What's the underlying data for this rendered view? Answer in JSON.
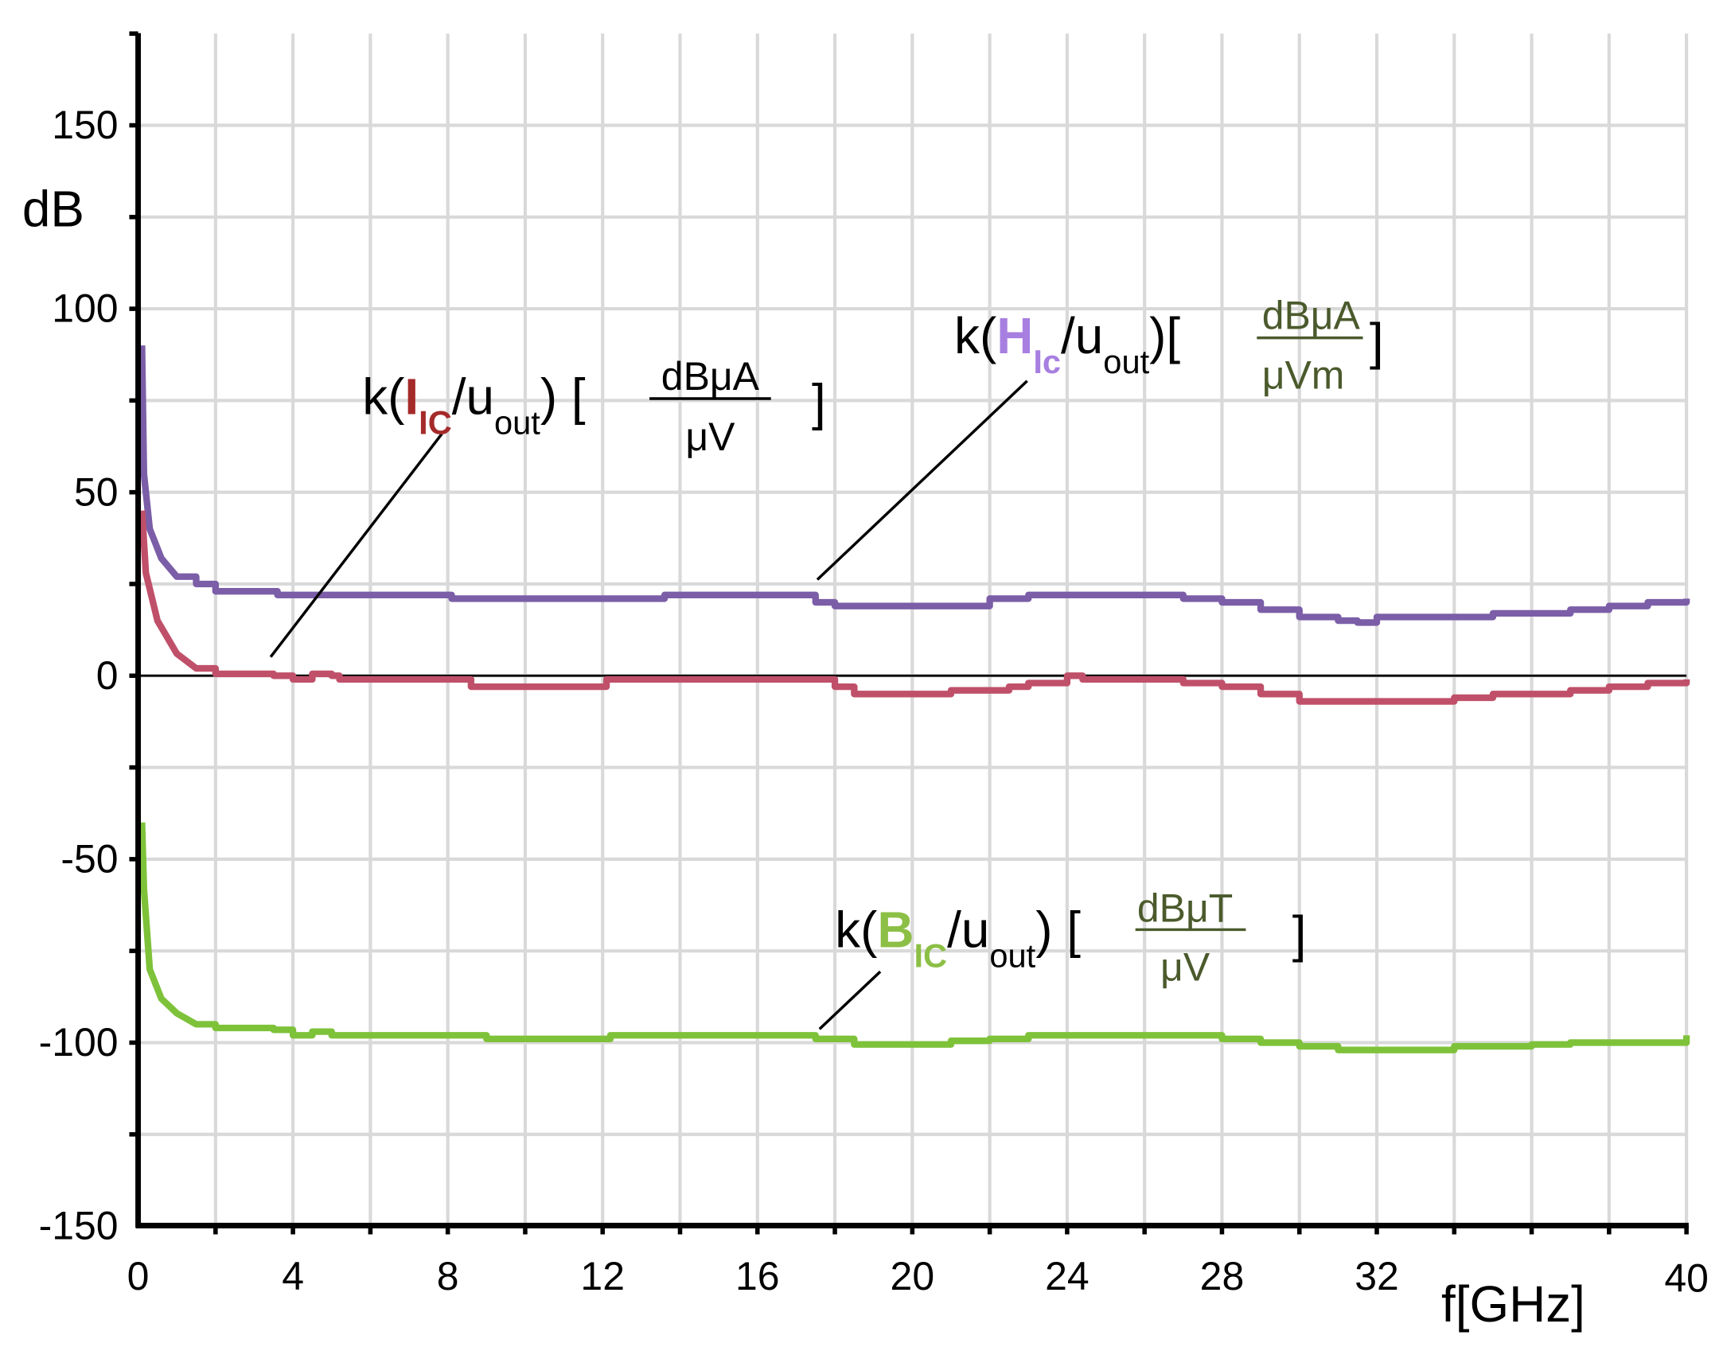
{
  "chart_data": {
    "type": "line",
    "title": "",
    "xlabel": "f[GHz]",
    "ylabel": "dB",
    "xlim": [
      0,
      40
    ],
    "ylim": [
      -150,
      175
    ],
    "grid": true,
    "xticks": [
      0,
      4,
      8,
      12,
      16,
      20,
      24,
      28,
      32,
      40
    ],
    "xtick_labels": [
      "0",
      "4",
      "8",
      "12",
      "16",
      "20",
      "24",
      "28",
      "32",
      "40"
    ],
    "yticks": [
      150,
      100,
      50,
      0,
      -50,
      -100,
      -150
    ],
    "ytick_labels": [
      "150",
      "100",
      "50",
      "0",
      "-50",
      "-100",
      "-150"
    ],
    "series": [
      {
        "key": "H",
        "color": "#7b5ea7",
        "label": {
          "pre": "k(",
          "main": "H",
          "sub": "Ic",
          "mid": "/u",
          "sub2": "out",
          "post": ")[",
          "num": "dBμA",
          "den": "μVm",
          "close": "]",
          "main_color": "#a77fe0",
          "unit_color": "#4b5a2c"
        },
        "x": [
          0.1,
          0.15,
          0.3,
          0.6,
          1,
          1.5,
          2,
          3.5,
          3.6,
          8,
          8.1,
          13.5,
          13.6,
          16.5,
          17.5,
          18,
          20,
          22,
          23,
          26,
          27,
          28,
          29,
          30,
          31,
          31.5,
          32,
          34,
          35,
          37,
          38,
          39,
          40
        ],
        "y": [
          90,
          55,
          40,
          32,
          27,
          25,
          23,
          23,
          22,
          22,
          21,
          21,
          22,
          22,
          20,
          19,
          19,
          21,
          22,
          22,
          21,
          20,
          18,
          16,
          15,
          14.5,
          16,
          16,
          17,
          18,
          19,
          20,
          21
        ]
      },
      {
        "key": "I",
        "color": "#c0506a",
        "label": {
          "pre": "k(",
          "main": "I",
          "sub": "IC",
          "mid": "/u",
          "sub2": "out",
          "post": ") [",
          "num": "dBμA",
          "den": "μV",
          "close": "]",
          "main_color": "#a52a2a",
          "unit_color": "#000000"
        },
        "x": [
          0.1,
          0.2,
          0.5,
          1,
          1.5,
          2,
          3.5,
          4,
          4.5,
          5,
          5.2,
          8.5,
          8.6,
          12,
          12.1,
          17,
          18,
          18.5,
          20.5,
          21,
          22.5,
          23,
          24,
          24.4,
          26.5,
          27,
          28,
          29,
          30,
          33,
          34,
          35,
          37,
          38,
          39,
          40
        ],
        "y": [
          45,
          28,
          15,
          6,
          2,
          0.5,
          0,
          -1,
          0.5,
          0,
          -1,
          -1,
          -3,
          -3,
          -1,
          -1,
          -3,
          -5,
          -5,
          -4,
          -3,
          -2,
          0,
          -1,
          -1,
          -2,
          -3,
          -5,
          -7,
          -7,
          -6,
          -5,
          -4,
          -3,
          -2,
          -1
        ]
      },
      {
        "key": "B",
        "color": "#7ec23a",
        "label": {
          "pre": "k(",
          "main": "B",
          "sub": "IC",
          "mid": "/u",
          "sub2": "out",
          "post": ") [",
          "num": "dBμT",
          "den": "μV",
          "close": "]",
          "main_color": "#8cbf45",
          "unit_color": "#4b5a2c"
        },
        "x": [
          0.1,
          0.15,
          0.3,
          0.6,
          1,
          1.5,
          2,
          3.5,
          4,
          4.5,
          5,
          8.5,
          9,
          12,
          12.2,
          16.5,
          17.5,
          18.5,
          20.5,
          21,
          22,
          23,
          26.5,
          28,
          29,
          30,
          31,
          33,
          34,
          36,
          37,
          40
        ],
        "y": [
          -40,
          -58,
          -80,
          -88,
          -92,
          -95,
          -96,
          -96.5,
          -98,
          -97,
          -98,
          -98,
          -99,
          -99,
          -98,
          -98,
          -99,
          -100.5,
          -100.5,
          -99.5,
          -99,
          -98,
          -98,
          -99,
          -100,
          -101,
          -102,
          -102,
          -101,
          -100.5,
          -100,
          -98
        ]
      }
    ]
  }
}
